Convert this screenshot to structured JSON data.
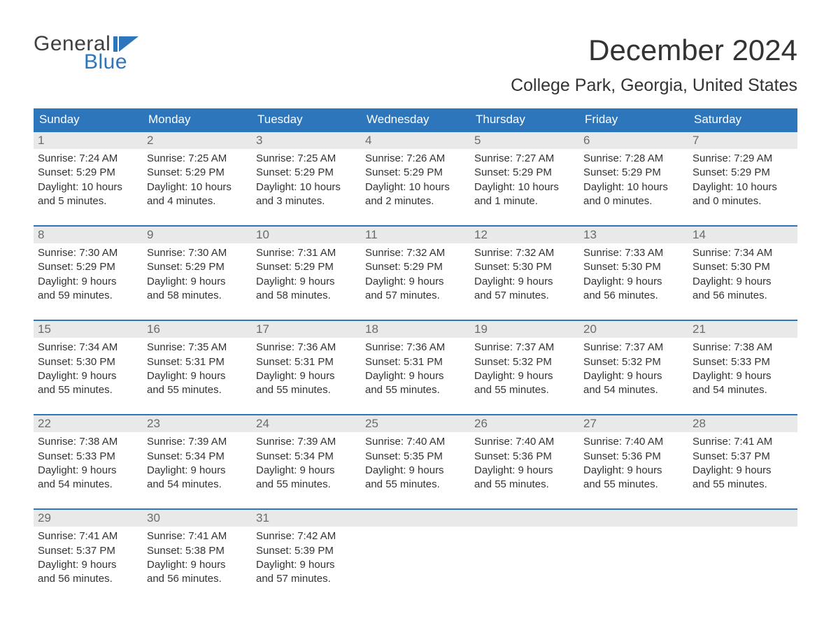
{
  "logo": {
    "word1": "General",
    "word2": "Blue",
    "accent_color": "#2d76bc"
  },
  "title": "December 2024",
  "location": "College Park, Georgia, United States",
  "colors": {
    "header_bg": "#2d76bc",
    "header_text": "#ffffff",
    "daynum_bg": "#e9e9e9",
    "daynum_text": "#6b6b6b",
    "week_border": "#2d76bc",
    "body_text": "#333333",
    "page_bg": "#ffffff"
  },
  "day_headers": [
    "Sunday",
    "Monday",
    "Tuesday",
    "Wednesday",
    "Thursday",
    "Friday",
    "Saturday"
  ],
  "weeks": [
    [
      {
        "n": "1",
        "sunrise": "Sunrise: 7:24 AM",
        "sunset": "Sunset: 5:29 PM",
        "dl1": "Daylight: 10 hours",
        "dl2": "and 5 minutes."
      },
      {
        "n": "2",
        "sunrise": "Sunrise: 7:25 AM",
        "sunset": "Sunset: 5:29 PM",
        "dl1": "Daylight: 10 hours",
        "dl2": "and 4 minutes."
      },
      {
        "n": "3",
        "sunrise": "Sunrise: 7:25 AM",
        "sunset": "Sunset: 5:29 PM",
        "dl1": "Daylight: 10 hours",
        "dl2": "and 3 minutes."
      },
      {
        "n": "4",
        "sunrise": "Sunrise: 7:26 AM",
        "sunset": "Sunset: 5:29 PM",
        "dl1": "Daylight: 10 hours",
        "dl2": "and 2 minutes."
      },
      {
        "n": "5",
        "sunrise": "Sunrise: 7:27 AM",
        "sunset": "Sunset: 5:29 PM",
        "dl1": "Daylight: 10 hours",
        "dl2": "and 1 minute."
      },
      {
        "n": "6",
        "sunrise": "Sunrise: 7:28 AM",
        "sunset": "Sunset: 5:29 PM",
        "dl1": "Daylight: 10 hours",
        "dl2": "and 0 minutes."
      },
      {
        "n": "7",
        "sunrise": "Sunrise: 7:29 AM",
        "sunset": "Sunset: 5:29 PM",
        "dl1": "Daylight: 10 hours",
        "dl2": "and 0 minutes."
      }
    ],
    [
      {
        "n": "8",
        "sunrise": "Sunrise: 7:30 AM",
        "sunset": "Sunset: 5:29 PM",
        "dl1": "Daylight: 9 hours",
        "dl2": "and 59 minutes."
      },
      {
        "n": "9",
        "sunrise": "Sunrise: 7:30 AM",
        "sunset": "Sunset: 5:29 PM",
        "dl1": "Daylight: 9 hours",
        "dl2": "and 58 minutes."
      },
      {
        "n": "10",
        "sunrise": "Sunrise: 7:31 AM",
        "sunset": "Sunset: 5:29 PM",
        "dl1": "Daylight: 9 hours",
        "dl2": "and 58 minutes."
      },
      {
        "n": "11",
        "sunrise": "Sunrise: 7:32 AM",
        "sunset": "Sunset: 5:29 PM",
        "dl1": "Daylight: 9 hours",
        "dl2": "and 57 minutes."
      },
      {
        "n": "12",
        "sunrise": "Sunrise: 7:32 AM",
        "sunset": "Sunset: 5:30 PM",
        "dl1": "Daylight: 9 hours",
        "dl2": "and 57 minutes."
      },
      {
        "n": "13",
        "sunrise": "Sunrise: 7:33 AM",
        "sunset": "Sunset: 5:30 PM",
        "dl1": "Daylight: 9 hours",
        "dl2": "and 56 minutes."
      },
      {
        "n": "14",
        "sunrise": "Sunrise: 7:34 AM",
        "sunset": "Sunset: 5:30 PM",
        "dl1": "Daylight: 9 hours",
        "dl2": "and 56 minutes."
      }
    ],
    [
      {
        "n": "15",
        "sunrise": "Sunrise: 7:34 AM",
        "sunset": "Sunset: 5:30 PM",
        "dl1": "Daylight: 9 hours",
        "dl2": "and 55 minutes."
      },
      {
        "n": "16",
        "sunrise": "Sunrise: 7:35 AM",
        "sunset": "Sunset: 5:31 PM",
        "dl1": "Daylight: 9 hours",
        "dl2": "and 55 minutes."
      },
      {
        "n": "17",
        "sunrise": "Sunrise: 7:36 AM",
        "sunset": "Sunset: 5:31 PM",
        "dl1": "Daylight: 9 hours",
        "dl2": "and 55 minutes."
      },
      {
        "n": "18",
        "sunrise": "Sunrise: 7:36 AM",
        "sunset": "Sunset: 5:31 PM",
        "dl1": "Daylight: 9 hours",
        "dl2": "and 55 minutes."
      },
      {
        "n": "19",
        "sunrise": "Sunrise: 7:37 AM",
        "sunset": "Sunset: 5:32 PM",
        "dl1": "Daylight: 9 hours",
        "dl2": "and 55 minutes."
      },
      {
        "n": "20",
        "sunrise": "Sunrise: 7:37 AM",
        "sunset": "Sunset: 5:32 PM",
        "dl1": "Daylight: 9 hours",
        "dl2": "and 54 minutes."
      },
      {
        "n": "21",
        "sunrise": "Sunrise: 7:38 AM",
        "sunset": "Sunset: 5:33 PM",
        "dl1": "Daylight: 9 hours",
        "dl2": "and 54 minutes."
      }
    ],
    [
      {
        "n": "22",
        "sunrise": "Sunrise: 7:38 AM",
        "sunset": "Sunset: 5:33 PM",
        "dl1": "Daylight: 9 hours",
        "dl2": "and 54 minutes."
      },
      {
        "n": "23",
        "sunrise": "Sunrise: 7:39 AM",
        "sunset": "Sunset: 5:34 PM",
        "dl1": "Daylight: 9 hours",
        "dl2": "and 54 minutes."
      },
      {
        "n": "24",
        "sunrise": "Sunrise: 7:39 AM",
        "sunset": "Sunset: 5:34 PM",
        "dl1": "Daylight: 9 hours",
        "dl2": "and 55 minutes."
      },
      {
        "n": "25",
        "sunrise": "Sunrise: 7:40 AM",
        "sunset": "Sunset: 5:35 PM",
        "dl1": "Daylight: 9 hours",
        "dl2": "and 55 minutes."
      },
      {
        "n": "26",
        "sunrise": "Sunrise: 7:40 AM",
        "sunset": "Sunset: 5:36 PM",
        "dl1": "Daylight: 9 hours",
        "dl2": "and 55 minutes."
      },
      {
        "n": "27",
        "sunrise": "Sunrise: 7:40 AM",
        "sunset": "Sunset: 5:36 PM",
        "dl1": "Daylight: 9 hours",
        "dl2": "and 55 minutes."
      },
      {
        "n": "28",
        "sunrise": "Sunrise: 7:41 AM",
        "sunset": "Sunset: 5:37 PM",
        "dl1": "Daylight: 9 hours",
        "dl2": "and 55 minutes."
      }
    ],
    [
      {
        "n": "29",
        "sunrise": "Sunrise: 7:41 AM",
        "sunset": "Sunset: 5:37 PM",
        "dl1": "Daylight: 9 hours",
        "dl2": "and 56 minutes."
      },
      {
        "n": "30",
        "sunrise": "Sunrise: 7:41 AM",
        "sunset": "Sunset: 5:38 PM",
        "dl1": "Daylight: 9 hours",
        "dl2": "and 56 minutes."
      },
      {
        "n": "31",
        "sunrise": "Sunrise: 7:42 AM",
        "sunset": "Sunset: 5:39 PM",
        "dl1": "Daylight: 9 hours",
        "dl2": "and 57 minutes."
      },
      {
        "empty": true
      },
      {
        "empty": true
      },
      {
        "empty": true
      },
      {
        "empty": true
      }
    ]
  ]
}
